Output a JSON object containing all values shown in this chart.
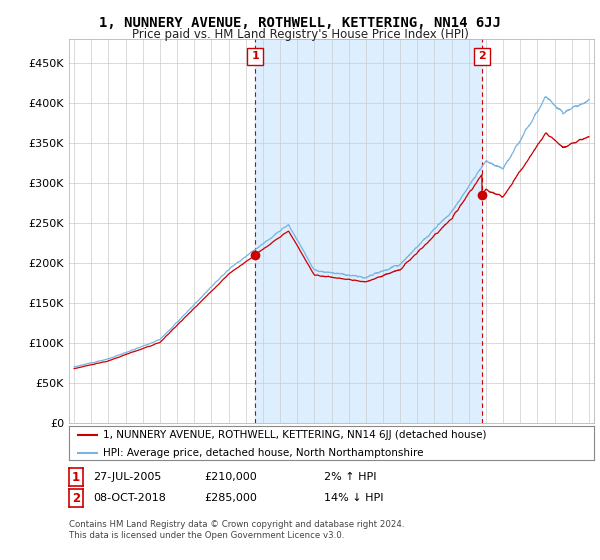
{
  "title": "1, NUNNERY AVENUE, ROTHWELL, KETTERING, NN14 6JJ",
  "subtitle": "Price paid vs. HM Land Registry's House Price Index (HPI)",
  "ylabel_ticks": [
    "£0",
    "£50K",
    "£100K",
    "£150K",
    "£200K",
    "£250K",
    "£300K",
    "£350K",
    "£400K",
    "£450K"
  ],
  "ytick_values": [
    0,
    50000,
    100000,
    150000,
    200000,
    250000,
    300000,
    350000,
    400000,
    450000
  ],
  "ylim": [
    0,
    480000
  ],
  "xlim_left": 1994.7,
  "xlim_right": 2025.3,
  "sale1_date": 2005.55,
  "sale1_price": 210000,
  "sale1_label": "1",
  "sale2_date": 2018.77,
  "sale2_price": 285000,
  "sale2_label": "2",
  "hpi_color": "#7ab4e0",
  "price_color": "#cc0000",
  "vline_color": "#cc0000",
  "shade_color": "#ddeeff",
  "legend_text_1": "1, NUNNERY AVENUE, ROTHWELL, KETTERING, NN14 6JJ (detached house)",
  "legend_text_2": "HPI: Average price, detached house, North Northamptonshire",
  "annotation1_date": "27-JUL-2005",
  "annotation1_price": "£210,000",
  "annotation1_pct": "2% ↑ HPI",
  "annotation2_date": "08-OCT-2018",
  "annotation2_price": "£285,000",
  "annotation2_pct": "14% ↓ HPI",
  "footer_line1": "Contains HM Land Registry data © Crown copyright and database right 2024.",
  "footer_line2": "This data is licensed under the Open Government Licence v3.0.",
  "bg_color": "#ffffff",
  "plot_bg_color": "#ffffff",
  "grid_color": "#cccccc"
}
